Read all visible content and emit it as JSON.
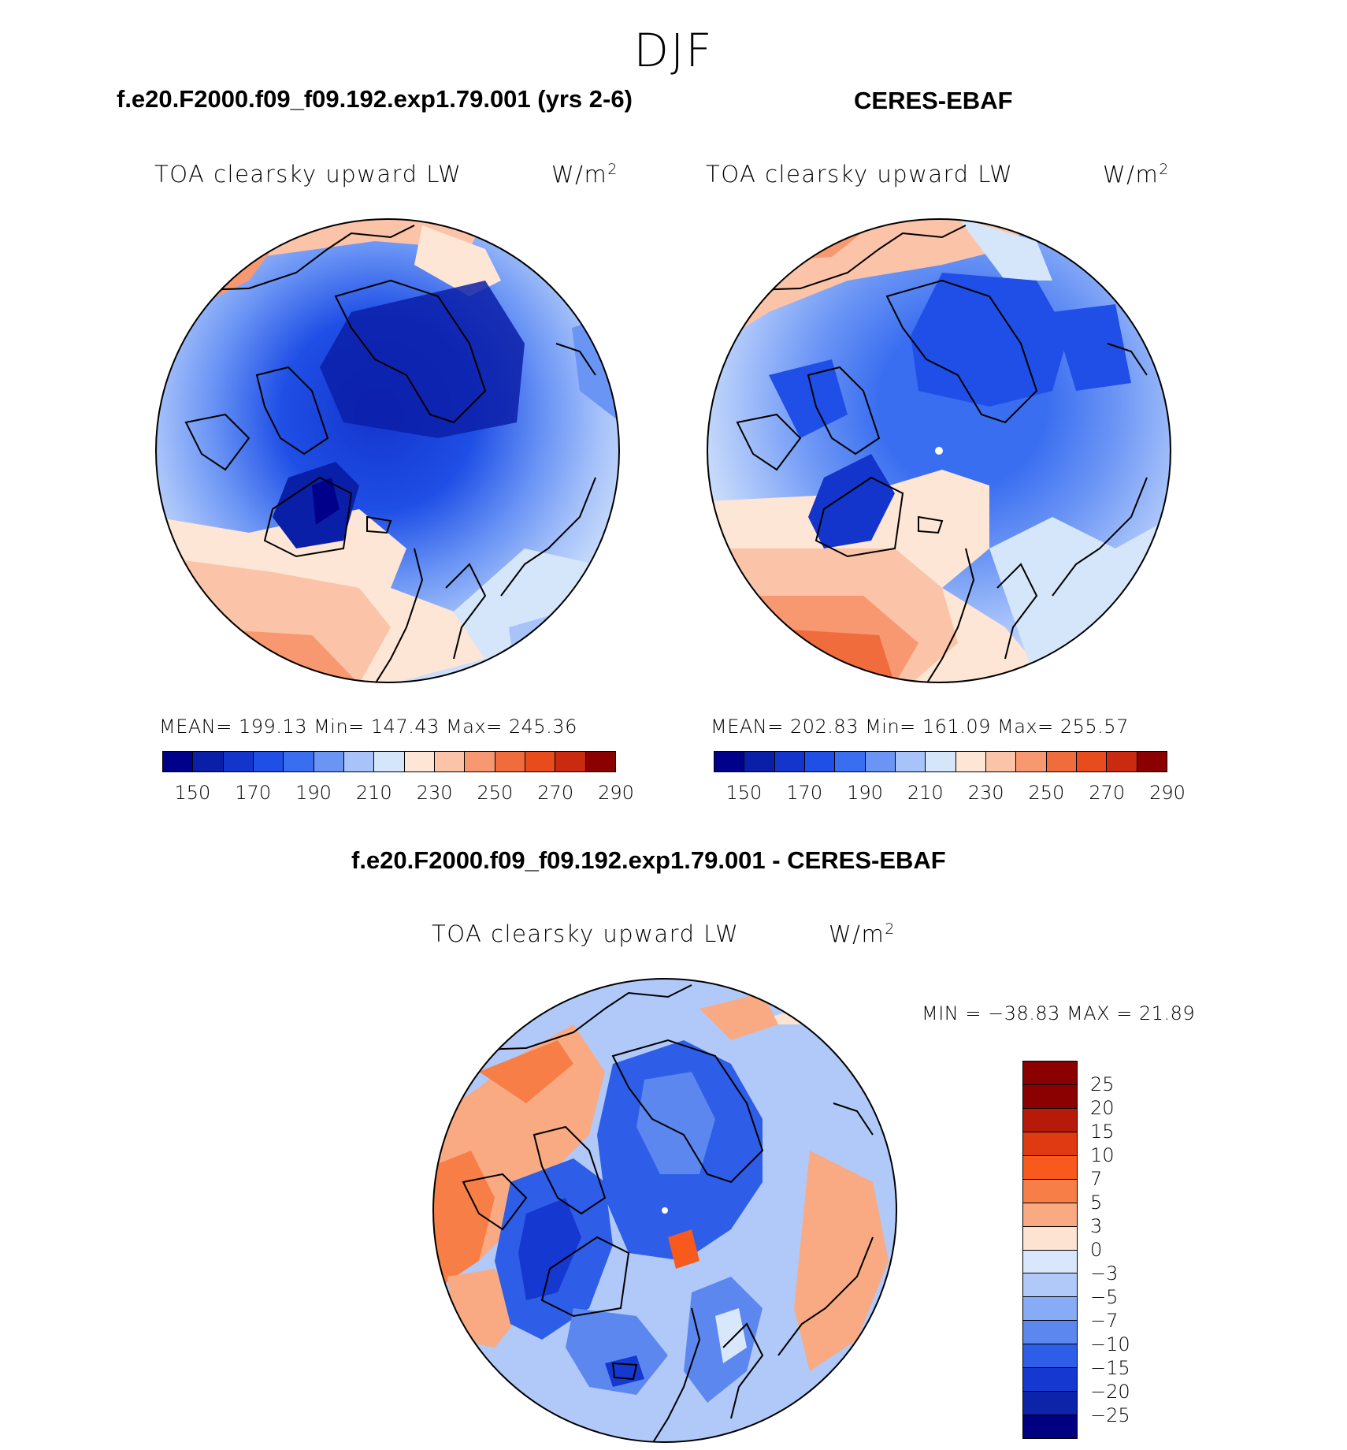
{
  "title": "DJF",
  "panels": [
    {
      "case_title": "f.e20.F2000.f09_f09.192.exp1.79.001 (yrs 2-6)",
      "variable": "TOA clearsky upward LW",
      "units": "W/m",
      "units_sup": "2",
      "stats": "MEAN= 199.13   Min= 147.43   Max= 245.36"
    },
    {
      "case_title": "CERES-EBAF",
      "variable": "TOA clearsky upward LW",
      "units": "W/m",
      "units_sup": "2",
      "stats": "MEAN= 202.83   Min= 161.09   Max= 255.57"
    },
    {
      "case_title": "f.e20.F2000.f09_f09.192.exp1.79.001 - CERES-EBAF",
      "variable": "TOA clearsky upward LW",
      "units": "W/m",
      "units_sup": "2",
      "stats": "MIN = −38.83 MAX =   21.89"
    }
  ],
  "colorbar_main": {
    "colors": [
      "#00008b",
      "#0a1fa8",
      "#1335cc",
      "#1f4fe6",
      "#3a6ef0",
      "#6b95f5",
      "#a8c3fa",
      "#d5e6fb",
      "#fde6d5",
      "#fbc3a8",
      "#f89870",
      "#f16c3c",
      "#e84c1c",
      "#c92a10",
      "#8b0000"
    ],
    "tick_labels": [
      "150",
      "170",
      "190",
      "210",
      "230",
      "250",
      "270",
      "290"
    ]
  },
  "colorbar_diff": {
    "colors": [
      "#8b0000",
      "#b81a0a",
      "#e03a12",
      "#f85a1e",
      "#f77f47",
      "#f9aa82",
      "#fde3d2",
      "#d8e7fb",
      "#b0c9f8",
      "#88abf5",
      "#5c87ef",
      "#2e5ee8",
      "#1438d0",
      "#0d23a9",
      "#000080"
    ],
    "labels": [
      "25",
      "20",
      "15",
      "10",
      "7",
      "5",
      "3",
      "0",
      "−3",
      "−5",
      "−7",
      "−10",
      "−15",
      "−20",
      "−25"
    ]
  },
  "chart_data": {
    "type": "heatmap",
    "season": "DJF",
    "projection": "north polar stereographic",
    "maps": [
      {
        "name": "f.e20.F2000.f09_f09.192.exp1.79.001 (yrs 2-6)",
        "mean": 199.13,
        "min": 147.43,
        "max": 245.36,
        "levels": [
          150,
          160,
          170,
          180,
          190,
          200,
          210,
          220,
          230,
          240,
          250,
          260,
          270,
          280,
          290
        ]
      },
      {
        "name": "CERES-EBAF",
        "mean": 202.83,
        "min": 161.09,
        "max": 255.57,
        "levels": [
          150,
          160,
          170,
          180,
          190,
          200,
          210,
          220,
          230,
          240,
          250,
          260,
          270,
          280,
          290
        ]
      },
      {
        "name": "f.e20.F2000.f09_f09.192.exp1.79.001 - CERES-EBAF",
        "min": -38.83,
        "max": 21.89,
        "levels": [
          -25,
          -20,
          -15,
          -10,
          -7,
          -5,
          -3,
          0,
          3,
          5,
          7,
          10,
          15,
          20,
          25
        ]
      }
    ]
  }
}
